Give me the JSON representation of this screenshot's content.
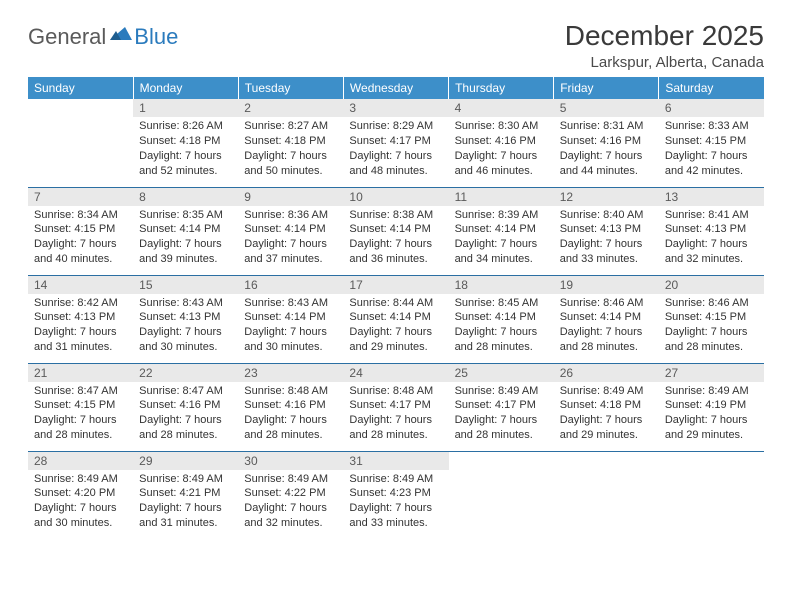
{
  "logo": {
    "part1": "General",
    "part2": "Blue"
  },
  "title": "December 2025",
  "location": "Larkspur, Alberta, Canada",
  "colors": {
    "header_bg": "#3d8fc9",
    "header_text": "#ffffff",
    "daynum_bg": "#e9e9e9",
    "daynum_text": "#5a5a5a",
    "row_border": "#2b6fa3",
    "logo_blue": "#2b7bbd",
    "logo_gray": "#5a5a5a"
  },
  "weekdays": [
    "Sunday",
    "Monday",
    "Tuesday",
    "Wednesday",
    "Thursday",
    "Friday",
    "Saturday"
  ],
  "weeks": [
    [
      null,
      {
        "n": "1",
        "sr": "8:26 AM",
        "ss": "4:18 PM",
        "dl": "7 hours and 52 minutes."
      },
      {
        "n": "2",
        "sr": "8:27 AM",
        "ss": "4:18 PM",
        "dl": "7 hours and 50 minutes."
      },
      {
        "n": "3",
        "sr": "8:29 AM",
        "ss": "4:17 PM",
        "dl": "7 hours and 48 minutes."
      },
      {
        "n": "4",
        "sr": "8:30 AM",
        "ss": "4:16 PM",
        "dl": "7 hours and 46 minutes."
      },
      {
        "n": "5",
        "sr": "8:31 AM",
        "ss": "4:16 PM",
        "dl": "7 hours and 44 minutes."
      },
      {
        "n": "6",
        "sr": "8:33 AM",
        "ss": "4:15 PM",
        "dl": "7 hours and 42 minutes."
      }
    ],
    [
      {
        "n": "7",
        "sr": "8:34 AM",
        "ss": "4:15 PM",
        "dl": "7 hours and 40 minutes."
      },
      {
        "n": "8",
        "sr": "8:35 AM",
        "ss": "4:14 PM",
        "dl": "7 hours and 39 minutes."
      },
      {
        "n": "9",
        "sr": "8:36 AM",
        "ss": "4:14 PM",
        "dl": "7 hours and 37 minutes."
      },
      {
        "n": "10",
        "sr": "8:38 AM",
        "ss": "4:14 PM",
        "dl": "7 hours and 36 minutes."
      },
      {
        "n": "11",
        "sr": "8:39 AM",
        "ss": "4:14 PM",
        "dl": "7 hours and 34 minutes."
      },
      {
        "n": "12",
        "sr": "8:40 AM",
        "ss": "4:13 PM",
        "dl": "7 hours and 33 minutes."
      },
      {
        "n": "13",
        "sr": "8:41 AM",
        "ss": "4:13 PM",
        "dl": "7 hours and 32 minutes."
      }
    ],
    [
      {
        "n": "14",
        "sr": "8:42 AM",
        "ss": "4:13 PM",
        "dl": "7 hours and 31 minutes."
      },
      {
        "n": "15",
        "sr": "8:43 AM",
        "ss": "4:13 PM",
        "dl": "7 hours and 30 minutes."
      },
      {
        "n": "16",
        "sr": "8:43 AM",
        "ss": "4:14 PM",
        "dl": "7 hours and 30 minutes."
      },
      {
        "n": "17",
        "sr": "8:44 AM",
        "ss": "4:14 PM",
        "dl": "7 hours and 29 minutes."
      },
      {
        "n": "18",
        "sr": "8:45 AM",
        "ss": "4:14 PM",
        "dl": "7 hours and 28 minutes."
      },
      {
        "n": "19",
        "sr": "8:46 AM",
        "ss": "4:14 PM",
        "dl": "7 hours and 28 minutes."
      },
      {
        "n": "20",
        "sr": "8:46 AM",
        "ss": "4:15 PM",
        "dl": "7 hours and 28 minutes."
      }
    ],
    [
      {
        "n": "21",
        "sr": "8:47 AM",
        "ss": "4:15 PM",
        "dl": "7 hours and 28 minutes."
      },
      {
        "n": "22",
        "sr": "8:47 AM",
        "ss": "4:16 PM",
        "dl": "7 hours and 28 minutes."
      },
      {
        "n": "23",
        "sr": "8:48 AM",
        "ss": "4:16 PM",
        "dl": "7 hours and 28 minutes."
      },
      {
        "n": "24",
        "sr": "8:48 AM",
        "ss": "4:17 PM",
        "dl": "7 hours and 28 minutes."
      },
      {
        "n": "25",
        "sr": "8:49 AM",
        "ss": "4:17 PM",
        "dl": "7 hours and 28 minutes."
      },
      {
        "n": "26",
        "sr": "8:49 AM",
        "ss": "4:18 PM",
        "dl": "7 hours and 29 minutes."
      },
      {
        "n": "27",
        "sr": "8:49 AM",
        "ss": "4:19 PM",
        "dl": "7 hours and 29 minutes."
      }
    ],
    [
      {
        "n": "28",
        "sr": "8:49 AM",
        "ss": "4:20 PM",
        "dl": "7 hours and 30 minutes."
      },
      {
        "n": "29",
        "sr": "8:49 AM",
        "ss": "4:21 PM",
        "dl": "7 hours and 31 minutes."
      },
      {
        "n": "30",
        "sr": "8:49 AM",
        "ss": "4:22 PM",
        "dl": "7 hours and 32 minutes."
      },
      {
        "n": "31",
        "sr": "8:49 AM",
        "ss": "4:23 PM",
        "dl": "7 hours and 33 minutes."
      },
      null,
      null,
      null
    ]
  ],
  "labels": {
    "sunrise": "Sunrise:",
    "sunset": "Sunset:",
    "daylight": "Daylight:"
  }
}
